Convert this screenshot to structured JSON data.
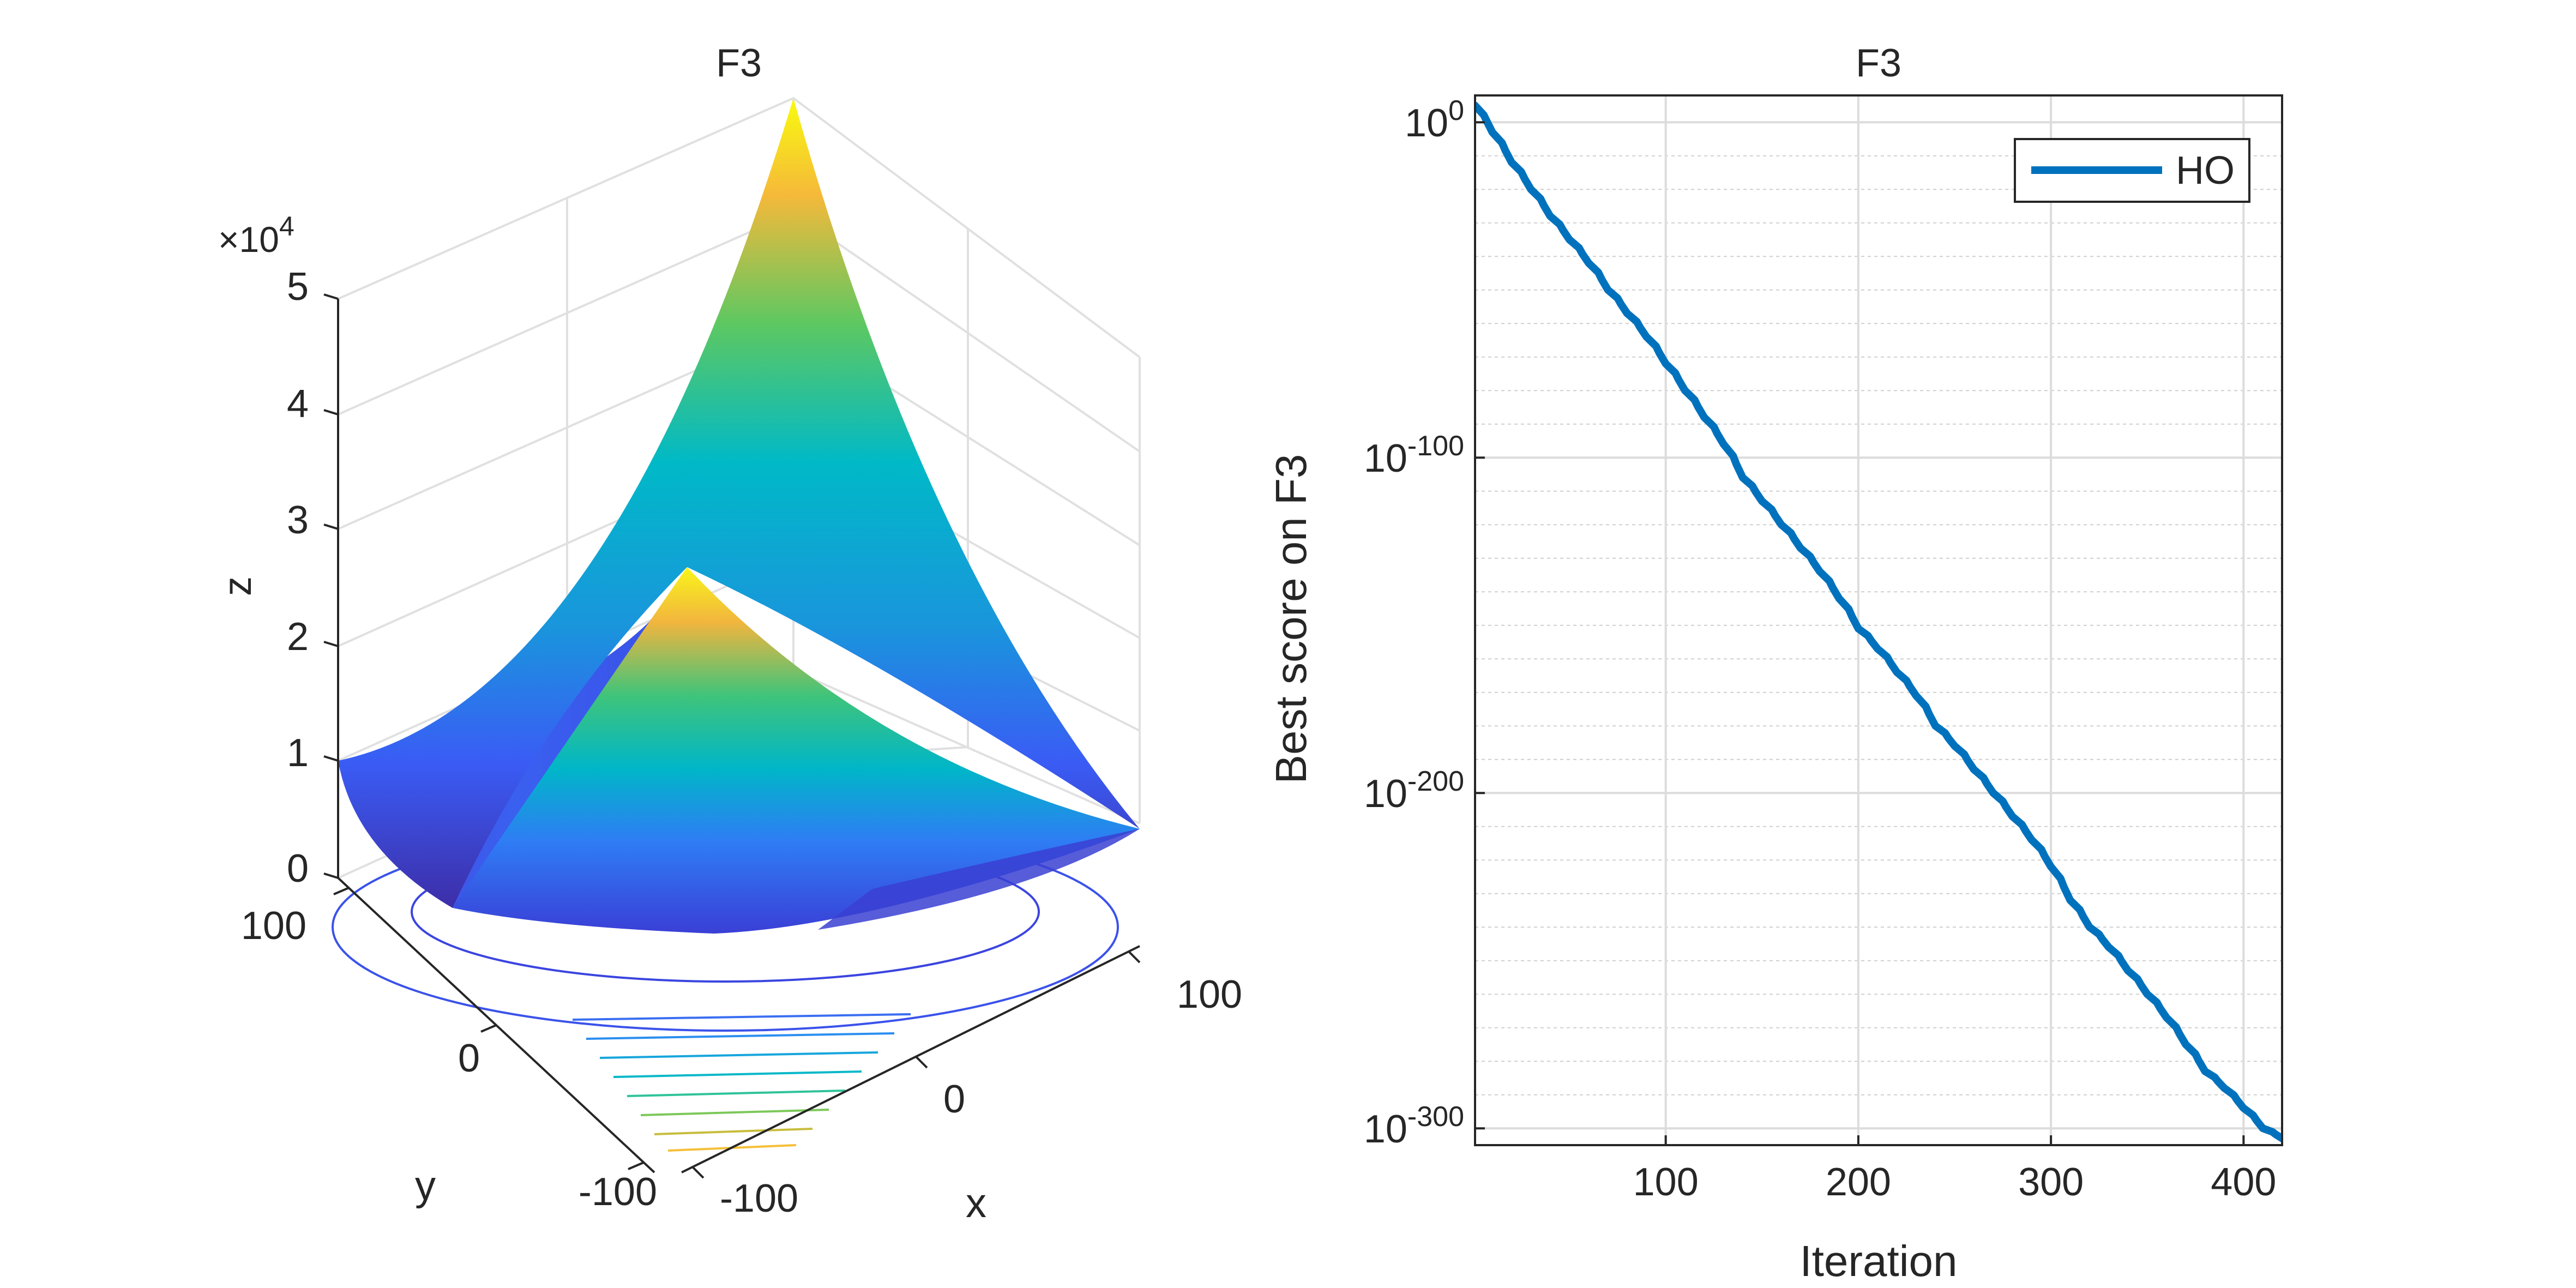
{
  "chart_data": [
    {
      "type": "surface",
      "title": "F3",
      "xlabel": "x",
      "ylabel": "y",
      "zlabel": "z",
      "z_exponent_label": "×10",
      "z_exponent_power": "4",
      "x_ticks": [
        "-100",
        "0",
        "100"
      ],
      "y_ticks": [
        "-100",
        "0",
        "100"
      ],
      "z_ticks": [
        "0",
        "1",
        "2",
        "3",
        "4",
        "5"
      ],
      "x_range": [
        -100,
        100
      ],
      "y_range": [
        -100,
        100
      ],
      "z_range": [
        0,
        50000
      ],
      "colormap": "parula",
      "contours": true
    },
    {
      "type": "line",
      "title": "F3",
      "xlabel": "Iteration",
      "ylabel": "Best score on F3",
      "yscale": "log",
      "xlim": [
        1,
        420
      ],
      "ylim_exponent": [
        -305,
        8
      ],
      "x_ticks": [
        "100",
        "200",
        "300",
        "400"
      ],
      "y_tick_base": "10",
      "y_tick_exponents": [
        "0",
        "-100",
        "-200",
        "-300"
      ],
      "legend": {
        "location": "top-right",
        "entries": [
          "HO"
        ]
      },
      "series": [
        {
          "name": "HO",
          "color": "#0072BD",
          "x": [
            1,
            10,
            20,
            30,
            40,
            50,
            60,
            70,
            80,
            90,
            100,
            110,
            120,
            130,
            140,
            150,
            160,
            170,
            180,
            190,
            200,
            210,
            220,
            230,
            240,
            250,
            260,
            270,
            280,
            290,
            300,
            310,
            320,
            330,
            340,
            350,
            360,
            370,
            380,
            390,
            400,
            410,
            420
          ],
          "log10_y": [
            5,
            -3,
            -12,
            -20,
            -28,
            -35,
            -42,
            -50,
            -57,
            -64,
            -72,
            -80,
            -88,
            -96,
            -106,
            -113,
            -120,
            -127,
            -134,
            -142,
            -151,
            -157,
            -164,
            -171,
            -180,
            -186,
            -193,
            -200,
            -207,
            -214,
            -222,
            -232,
            -240,
            -246,
            -253,
            -260,
            -267,
            -275,
            -283,
            -288,
            -294,
            -300,
            -303
          ]
        }
      ]
    }
  ]
}
